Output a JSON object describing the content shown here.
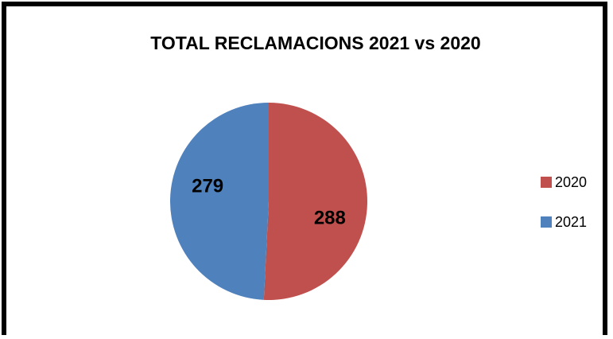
{
  "chart_data": {
    "type": "pie",
    "title": "TOTAL RECLAMACIONS 2021 vs 2020",
    "categories": [
      "2020",
      "2021"
    ],
    "values": [
      288,
      279
    ],
    "colors": [
      "#C0504D",
      "#4F81BD"
    ],
    "legend": "right"
  }
}
